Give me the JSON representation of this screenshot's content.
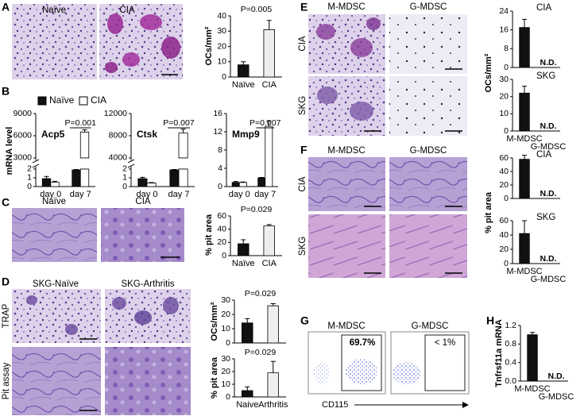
{
  "panel_letters": [
    "A",
    "B",
    "C",
    "D",
    "E",
    "F",
    "G",
    "H"
  ],
  "image_labels": {
    "A": [
      "Naïve",
      "CIA"
    ],
    "C": [
      "Naïve",
      "CIA"
    ],
    "D": {
      "columns": [
        "SKG-Naïve",
        "SKG-Arthritis"
      ],
      "rows": [
        "TRAP",
        "Pit assay"
      ]
    },
    "E": {
      "columns": [
        "M-MDSC",
        "G-MDSC"
      ],
      "rows": [
        "CIA",
        "SKG"
      ]
    },
    "F": {
      "columns": [
        "M-MDSC",
        "G-MDSC"
      ],
      "rows": [
        "CIA",
        "SKG"
      ]
    },
    "G": {
      "columns": [
        "M-MDSC",
        "G-MDSC"
      ],
      "gates": [
        "69.7%",
        "< 1%"
      ],
      "x_axis": "CD115"
    }
  },
  "chart_data": [
    {
      "type": "bar",
      "y_label": "OCs/mm²",
      "categories": [
        "Naïve",
        "CIA"
      ],
      "colors": [
        "#111111",
        "#eeeeee"
      ],
      "series": [
        {
          "values": [
            8,
            31
          ],
          "errors": [
            2,
            6
          ]
        }
      ],
      "ylim": [
        0,
        40
      ],
      "yticks": [
        0,
        10,
        20,
        30,
        40
      ],
      "annotations": [
        "P=0.005"
      ]
    },
    {
      "type": "bar",
      "title": "Acp5",
      "y_label": "mRNA level",
      "categories": [
        "day 0",
        "day 7"
      ],
      "legend": "top-left",
      "series": [
        {
          "name": "Naïve",
          "color": "#111111",
          "values": [
            0.9,
            1.9
          ],
          "errors": [
            0.25,
            0.05
          ]
        },
        {
          "name": "CIA",
          "color": "#ffffff",
          "values": [
            0.5,
            6500
          ],
          "errors": [
            0.1,
            300
          ]
        }
      ],
      "ylim": [
        0,
        9000
      ],
      "ybreak": [
        2,
        3000
      ],
      "yticks": [
        0,
        1,
        2,
        3000,
        6000,
        9000
      ],
      "annotations": [
        "P=0.001"
      ]
    },
    {
      "type": "bar",
      "title": "Ctsk",
      "categories": [
        "day 0",
        "day 7"
      ],
      "series": [
        {
          "color": "#111111",
          "values": [
            0.9,
            1.9
          ],
          "errors": [
            0.15,
            0.05
          ]
        },
        {
          "color": "#ffffff",
          "values": [
            0.4,
            8500
          ],
          "errors": [
            0.05,
            700
          ]
        }
      ],
      "ylim": [
        0,
        12000
      ],
      "ybreak": [
        2,
        4000
      ],
      "yticks": [
        0,
        1,
        2,
        4000,
        8000,
        12000
      ],
      "annotations": [
        "P=0.007"
      ]
    },
    {
      "type": "bar",
      "title": "Mmp9",
      "categories": [
        "day 0",
        "day 7"
      ],
      "series": [
        {
          "color": "#111111",
          "values": [
            0.9,
            1.9
          ],
          "errors": [
            0.2,
            0.1
          ]
        },
        {
          "color": "#ffffff",
          "values": [
            0.9,
            13.2
          ],
          "errors": [
            0.1,
            1.2
          ]
        }
      ],
      "ylim": [
        0,
        16
      ],
      "yticks": [
        0,
        4,
        8,
        12,
        16
      ],
      "annotations": [
        "P=0.007"
      ]
    },
    {
      "type": "bar",
      "y_label": "% pit area",
      "categories": [
        "Naïve",
        "CIA"
      ],
      "colors": [
        "#111111",
        "#eeeeee"
      ],
      "series": [
        {
          "values": [
            18,
            45
          ],
          "errors": [
            6,
            2
          ]
        }
      ],
      "ylim": [
        0,
        60
      ],
      "yticks": [
        0,
        20,
        40,
        60
      ],
      "annotations": [
        "P=0.029"
      ]
    },
    {
      "type": "bar",
      "y_label": "OCs/mm²",
      "categories": [
        null,
        null
      ],
      "colors": [
        "#111111",
        "#eeeeee"
      ],
      "series": [
        {
          "values": [
            14,
            26
          ],
          "errors": [
            3,
            1.5
          ]
        }
      ],
      "ylim": [
        0,
        30
      ],
      "yticks": [
        0,
        10,
        20,
        30
      ],
      "annotations": [
        "P=0.029"
      ]
    },
    {
      "type": "bar",
      "y_label": "% pit area",
      "categories": [
        "Naive",
        "Arthritis"
      ],
      "colors": [
        "#111111",
        "#eeeeee"
      ],
      "series": [
        {
          "values": [
            5,
            19
          ],
          "errors": [
            3,
            9
          ]
        }
      ],
      "ylim": [
        0,
        30
      ],
      "yticks": [
        0,
        10,
        20,
        30
      ],
      "annotations": [
        "P=0.029"
      ]
    },
    {
      "type": "bar",
      "title": "CIA",
      "y_label": "OCs/mm²",
      "categories": [
        null,
        null
      ],
      "series": [
        {
          "color": "#111111",
          "values": [
            17,
            null
          ],
          "errors": [
            3.5,
            null
          ],
          "value_labels": [
            null,
            "N.D."
          ]
        }
      ],
      "ylim": [
        0,
        24
      ],
      "yticks": [
        0,
        8,
        16,
        24
      ]
    },
    {
      "type": "bar",
      "title": "SKG",
      "categories": [
        "M-MDSC",
        "G-MDSC"
      ],
      "series": [
        {
          "color": "#111111",
          "values": [
            22,
            null
          ],
          "errors": [
            4,
            null
          ],
          "value_labels": [
            null,
            "N.D."
          ]
        }
      ],
      "ylim": [
        0,
        30
      ],
      "yticks": [
        0,
        10,
        20,
        30
      ]
    },
    {
      "type": "bar",
      "title": "CIA",
      "y_label": "% pit area",
      "categories": [
        null,
        null
      ],
      "series": [
        {
          "color": "#111111",
          "values": [
            58,
            null
          ],
          "errors": [
            6,
            null
          ],
          "value_labels": [
            null,
            "N.D."
          ]
        }
      ],
      "ylim": [
        0,
        60
      ],
      "yticks": [
        0,
        20,
        40,
        60
      ]
    },
    {
      "type": "bar",
      "title": "SKG",
      "categories": [
        "M-MDSC",
        "G-MDSC"
      ],
      "series": [
        {
          "color": "#111111",
          "values": [
            42,
            null
          ],
          "errors": [
            18,
            null
          ],
          "value_labels": [
            null,
            "N.D."
          ]
        }
      ],
      "ylim": [
        0,
        60
      ],
      "yticks": [
        0,
        20,
        40,
        60
      ]
    },
    {
      "type": "bar",
      "y_label": "Tnfrsf11a mRNA",
      "categories": [
        "M-MDSC",
        "G-MDSC"
      ],
      "series": [
        {
          "color": "#111111",
          "values": [
            1.0,
            null
          ],
          "errors": [
            0.05,
            null
          ],
          "value_labels": [
            null,
            "N.D."
          ]
        }
      ],
      "ylim": [
        0,
        1.2
      ],
      "yticks": [
        {
          "value": 0,
          "label": "0.0"
        },
        0.4,
        0.8,
        1.2
      ]
    }
  ]
}
